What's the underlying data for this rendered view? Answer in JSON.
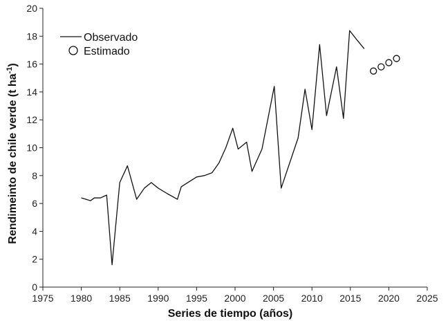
{
  "chart_data": {
    "type": "line",
    "xlabel": "Series de tiempo (años)",
    "ylabel": "Rendimeinto de chile verde",
    "ylabel_unit_prefix": "(t ha",
    "ylabel_unit_sup": "-1",
    "ylabel_unit_suffix": ")",
    "xlim": [
      1975,
      2025
    ],
    "ylim": [
      0,
      20
    ],
    "x_ticks": [
      "1975",
      "1980",
      "1985",
      "1990",
      "1995",
      "2000",
      "2005",
      "2010",
      "2015",
      "2020",
      "2025"
    ],
    "y_ticks": [
      "0",
      "2",
      "4",
      "6",
      "8",
      "10",
      "12",
      "14",
      "16",
      "18",
      "20"
    ],
    "grid": false,
    "legend_position": "top-left",
    "series": [
      {
        "name": "Observado",
        "style": "line",
        "color": "#111111",
        "x": [
          1980,
          1981,
          1982,
          1983,
          1984,
          1985,
          1986,
          1987,
          1988,
          1989,
          1990,
          1991,
          1992,
          1993,
          1994,
          1995,
          1996,
          1997,
          1998,
          1999,
          2000,
          2001,
          2002,
          2003,
          2004,
          2005,
          2006,
          2007,
          2008,
          2009,
          2010,
          2011,
          2012,
          2013,
          2014,
          2015,
          2016
        ],
        "y": [
          6.4,
          6.2,
          6.4,
          6.4,
          6.6,
          1.6,
          7.5,
          8.7,
          6.3,
          7.1,
          7.5,
          7.1,
          6.7,
          6.3,
          7.2,
          7.9,
          8.0,
          8.2,
          8.9,
          10.0,
          11.4,
          9.9,
          10.4,
          8.3,
          9.9,
          14.4,
          7.1,
          10.7,
          14.2,
          11.3,
          17.4,
          12.3,
          15.8,
          12.1,
          18.4,
          17.7,
          17.1
        ],
        "x_exact": [
          1980.0,
          1981.2,
          1981.7,
          1982.5,
          1983.3,
          1984.0,
          1985.0,
          1986.0,
          1987.2,
          1988.2,
          1989.1,
          1990.0,
          1991.2,
          1992.5,
          1993.0,
          1995.0,
          1996.0,
          1997.0,
          1997.9,
          1998.8,
          1999.7,
          2000.4,
          2001.5,
          2002.2,
          2003.5,
          2005.1,
          2006.0,
          2008.2,
          2009.1,
          2010.0,
          2011.0,
          2011.9,
          2013.2,
          2014.1,
          2014.9,
          2015.9,
          2016.8
        ]
      },
      {
        "name": "Estimado",
        "style": "points",
        "color": "#111111",
        "x": [
          2018,
          2019,
          2020,
          2021
        ],
        "y": [
          15.5,
          15.8,
          16.1,
          16.4
        ]
      }
    ]
  }
}
